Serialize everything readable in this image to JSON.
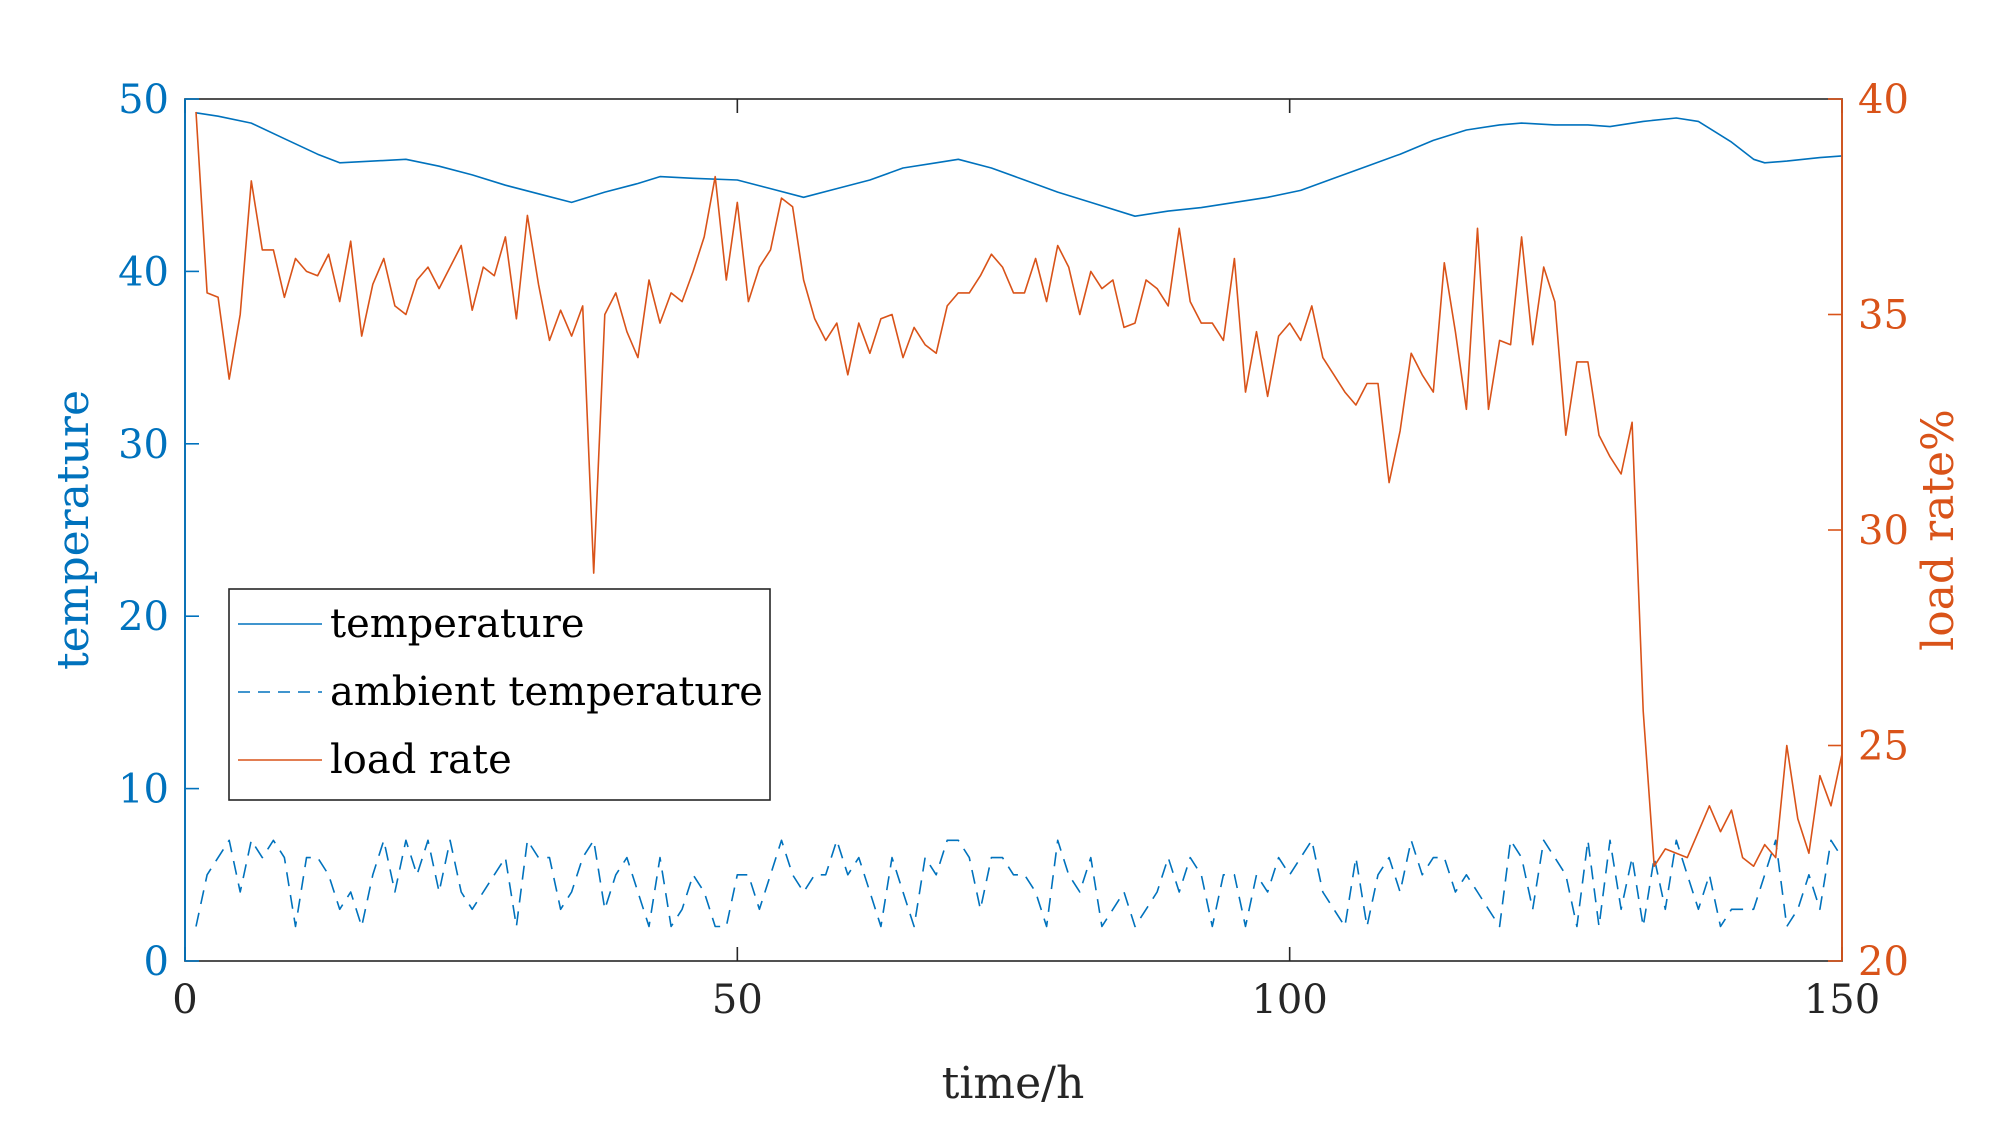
{
  "chart_data": {
    "type": "line",
    "xlabel": "time/h",
    "ylabel_left": "temperature",
    "ylabel_right": "load rate%",
    "xlim": [
      0,
      150
    ],
    "ylim_left": [
      0,
      50
    ],
    "ylim_right": [
      20,
      40
    ],
    "x_ticks": [
      0,
      50,
      100,
      150
    ],
    "y_left_ticks": [
      0,
      10,
      20,
      30,
      40,
      50
    ],
    "y_right_ticks": [
      20,
      25,
      30,
      35,
      40
    ],
    "grid": false,
    "legend_position": "middle-left",
    "colors": {
      "left_axis": "#0072BD",
      "right_axis": "#D95319",
      "temperature": "#0072BD",
      "ambient": "#0072BD",
      "load_rate": "#D95319"
    },
    "series": [
      {
        "name": "temperature",
        "axis": "left",
        "style": "solid",
        "x": [
          1,
          3,
          6,
          9,
          12,
          14,
          17,
          20,
          23,
          26,
          29,
          32,
          35,
          38,
          41,
          43,
          46,
          50,
          53,
          56,
          59,
          62,
          65,
          68,
          70,
          73,
          76,
          79,
          82,
          86,
          89,
          92,
          95,
          98,
          101,
          104,
          107,
          110,
          113,
          116,
          119,
          121,
          124,
          127,
          129,
          132,
          135,
          137,
          140,
          142,
          143,
          145,
          148,
          150
        ],
        "y": [
          49.2,
          49.0,
          48.6,
          47.7,
          46.8,
          46.3,
          46.4,
          46.5,
          46.1,
          45.6,
          45.0,
          44.5,
          44.0,
          44.6,
          45.1,
          45.5,
          45.4,
          45.3,
          44.8,
          44.3,
          44.8,
          45.3,
          46.0,
          46.3,
          46.5,
          46.0,
          45.3,
          44.6,
          44.0,
          43.2,
          43.5,
          43.7,
          44.0,
          44.3,
          44.7,
          45.4,
          46.1,
          46.8,
          47.6,
          48.2,
          48.5,
          48.6,
          48.5,
          48.5,
          48.4,
          48.7,
          48.9,
          48.7,
          47.5,
          46.5,
          46.3,
          46.4,
          46.6,
          46.7
        ]
      },
      {
        "name": "ambient temperature",
        "axis": "left",
        "style": "dashed",
        "x": [
          1,
          2,
          3,
          4,
          5,
          6,
          7,
          8,
          9,
          10,
          11,
          12,
          13,
          14,
          15,
          16,
          17,
          18,
          19,
          20,
          21,
          22,
          23,
          24,
          25,
          26,
          27,
          28,
          29,
          30,
          31,
          32,
          33,
          34,
          35,
          36,
          37,
          38,
          39,
          40,
          41,
          42,
          43,
          44,
          45,
          46,
          47,
          48,
          49,
          50,
          51,
          52,
          53,
          54,
          55,
          56,
          57,
          58,
          59,
          60,
          61,
          62,
          63,
          64,
          65,
          66,
          67,
          68,
          69,
          70,
          71,
          72,
          73,
          74,
          75,
          76,
          77,
          78,
          79,
          80,
          81,
          82,
          83,
          84,
          85,
          86,
          87,
          88,
          89,
          90,
          91,
          92,
          93,
          94,
          95,
          96,
          97,
          98,
          99,
          100,
          101,
          102,
          103,
          104,
          105,
          106,
          107,
          108,
          109,
          110,
          111,
          112,
          113,
          114,
          115,
          116,
          117,
          118,
          119,
          120,
          121,
          122,
          123,
          124,
          125,
          126,
          127,
          128,
          129,
          130,
          131,
          132,
          133,
          134,
          135,
          136,
          137,
          138,
          139,
          140,
          141,
          142,
          143,
          144,
          145,
          146,
          147,
          148,
          149,
          150
        ],
        "y": [
          2,
          5,
          6,
          7,
          4,
          7,
          6,
          7,
          6,
          2,
          6,
          6,
          5,
          3,
          4,
          2,
          5,
          7,
          4,
          7,
          5,
          7,
          4,
          7,
          4,
          3,
          4,
          5,
          6,
          2,
          7,
          6,
          6,
          3,
          4,
          6,
          7,
          3,
          5,
          6,
          4,
          2,
          6,
          2,
          3,
          5,
          4,
          2,
          2,
          5,
          5,
          3,
          5,
          7,
          5,
          4,
          5,
          5,
          7,
          5,
          6,
          4,
          2,
          6,
          4,
          2,
          6,
          5,
          7,
          7,
          6,
          3,
          6,
          6,
          5,
          5,
          4,
          2,
          7,
          5,
          4,
          6,
          2,
          3,
          4,
          2,
          3,
          4,
          6,
          4,
          6,
          5,
          2,
          5,
          5,
          2,
          5,
          4,
          6,
          5,
          6,
          7,
          4,
          3,
          2,
          6,
          2,
          5,
          6,
          4,
          7,
          5,
          6,
          6,
          4,
          5,
          4,
          3,
          2,
          7,
          6,
          3,
          7,
          6,
          5,
          2,
          7,
          2,
          7,
          3,
          6,
          2,
          6,
          3,
          7,
          5,
          3,
          5,
          2,
          3,
          3,
          3,
          5,
          7,
          2,
          3,
          5,
          3,
          7,
          6
        ]
      },
      {
        "name": "load rate",
        "axis": "right",
        "style": "solid",
        "x": [
          1,
          2,
          3,
          4,
          5,
          6,
          7,
          8,
          9,
          10,
          11,
          12,
          13,
          14,
          15,
          16,
          17,
          18,
          19,
          20,
          21,
          22,
          23,
          24,
          25,
          26,
          27,
          28,
          29,
          30,
          31,
          32,
          33,
          34,
          35,
          36,
          37,
          38,
          39,
          40,
          41,
          42,
          43,
          44,
          45,
          46,
          47,
          48,
          49,
          50,
          51,
          52,
          53,
          54,
          55,
          56,
          57,
          58,
          59,
          60,
          61,
          62,
          63,
          64,
          65,
          66,
          67,
          68,
          69,
          70,
          71,
          72,
          73,
          74,
          75,
          76,
          77,
          78,
          79,
          80,
          81,
          82,
          83,
          84,
          85,
          86,
          87,
          88,
          89,
          90,
          91,
          92,
          93,
          94,
          95,
          96,
          97,
          98,
          99,
          100,
          101,
          102,
          103,
          104,
          105,
          106,
          107,
          108,
          109,
          110,
          111,
          112,
          113,
          114,
          115,
          116,
          117,
          118,
          119,
          120,
          121,
          122,
          123,
          124,
          125,
          126,
          127,
          128,
          129,
          130,
          131,
          132,
          133,
          134,
          135,
          136,
          137,
          138,
          139,
          140,
          141,
          142,
          143,
          144,
          145,
          146,
          147,
          148,
          149,
          150
        ],
        "y": [
          39.7,
          35.5,
          35.4,
          33.5,
          35.0,
          38.1,
          36.5,
          36.5,
          35.4,
          36.3,
          36.0,
          35.9,
          36.4,
          35.3,
          36.7,
          34.5,
          35.7,
          36.3,
          35.2,
          35.0,
          35.8,
          36.1,
          35.6,
          36.1,
          36.6,
          35.1,
          36.1,
          35.9,
          36.8,
          34.9,
          37.3,
          35.7,
          34.4,
          35.1,
          34.5,
          35.2,
          29.0,
          35.0,
          35.5,
          34.6,
          34.0,
          35.8,
          34.8,
          35.5,
          35.3,
          36.0,
          36.8,
          38.2,
          35.8,
          37.6,
          35.3,
          36.1,
          36.5,
          37.7,
          37.5,
          35.8,
          34.9,
          34.4,
          34.8,
          33.6,
          34.8,
          34.1,
          34.9,
          35.0,
          34.0,
          34.7,
          34.3,
          34.1,
          35.2,
          35.5,
          35.5,
          35.9,
          36.4,
          36.1,
          35.5,
          35.5,
          36.3,
          35.3,
          36.6,
          36.1,
          35.0,
          36.0,
          35.6,
          35.8,
          34.7,
          34.8,
          35.8,
          35.6,
          35.2,
          37.0,
          35.3,
          34.8,
          34.8,
          34.4,
          36.3,
          33.2,
          34.6,
          33.1,
          34.5,
          34.8,
          34.4,
          35.2,
          34.0,
          33.6,
          33.2,
          32.9,
          33.4,
          33.4,
          31.1,
          32.3,
          34.1,
          33.6,
          33.2,
          36.2,
          34.6,
          32.8,
          37.0,
          32.8,
          34.4,
          34.3,
          36.8,
          34.3,
          36.1,
          35.3,
          32.2,
          33.9,
          33.9,
          32.2,
          31.7,
          31.3,
          32.5,
          25.8,
          22.2,
          22.6,
          22.5,
          22.4,
          23.0,
          23.6,
          23.0,
          23.5,
          22.4,
          22.2,
          22.7,
          22.4,
          25.0,
          23.3,
          22.5,
          24.3,
          23.6,
          24.8
        ]
      }
    ]
  }
}
